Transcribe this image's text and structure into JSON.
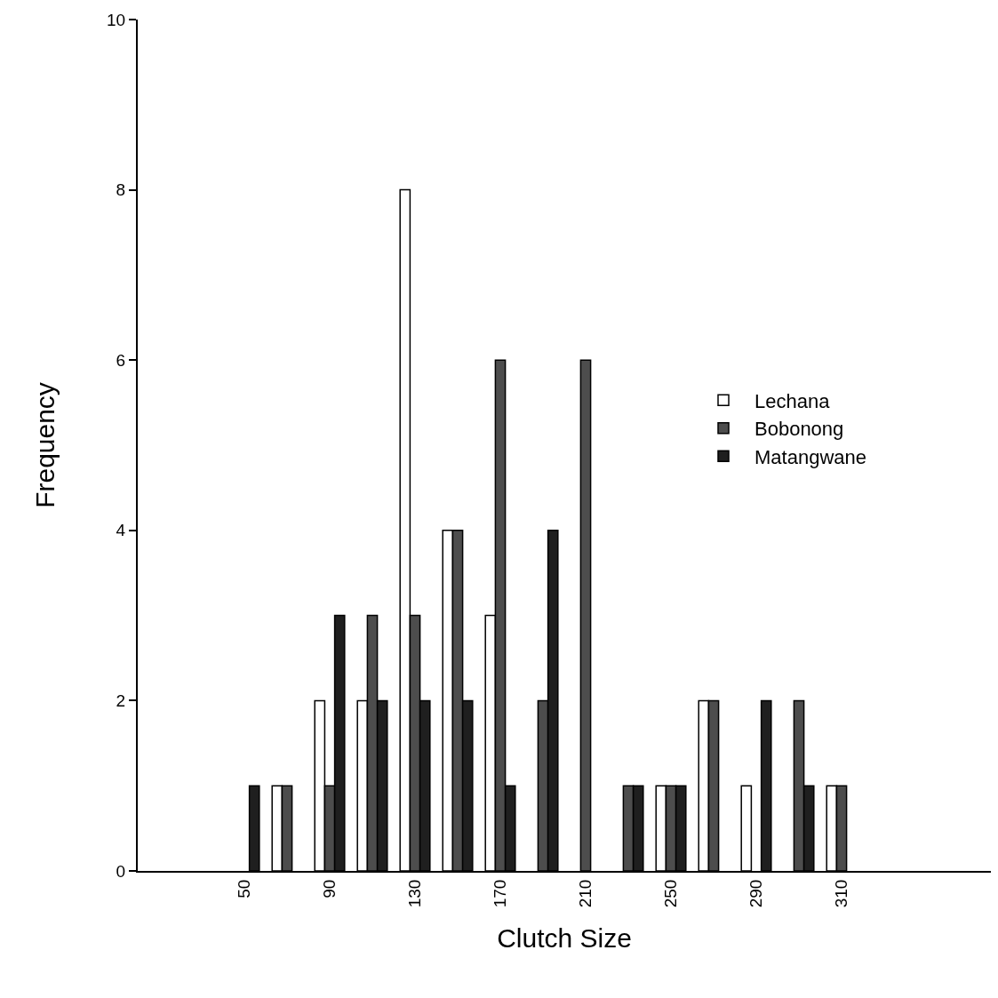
{
  "chart_data": {
    "type": "bar",
    "xlabel": "Clutch Size",
    "ylabel": "Frequency",
    "categories": [
      null,
      null,
      "50",
      null,
      "90",
      null,
      "130",
      null,
      "170",
      null,
      "210",
      null,
      "250",
      null,
      "290",
      null,
      "310",
      null,
      null,
      null
    ],
    "series": [
      {
        "name": "Lechana",
        "color": "#ffffff",
        "values": [
          null,
          null,
          0,
          1,
          2,
          2,
          8,
          4,
          3,
          0,
          0,
          0,
          1,
          2,
          1,
          0,
          1,
          null,
          null,
          null
        ]
      },
      {
        "name": "Bobonong",
        "color": "#4d4d4d",
        "values": [
          null,
          null,
          0,
          1,
          1,
          3,
          3,
          4,
          6,
          2,
          6,
          1,
          1,
          2,
          0,
          2,
          1,
          null,
          null,
          null
        ]
      },
      {
        "name": "Matangwane",
        "color": "#1f1f1f",
        "values": [
          null,
          null,
          1,
          0,
          3,
          2,
          2,
          2,
          1,
          4,
          0,
          1,
          1,
          0,
          2,
          1,
          0,
          null,
          null,
          null
        ]
      }
    ],
    "ylim": [
      0,
      10
    ],
    "yticks": [
      0,
      2,
      4,
      6,
      8,
      10
    ],
    "grid": false,
    "legend": "right"
  }
}
